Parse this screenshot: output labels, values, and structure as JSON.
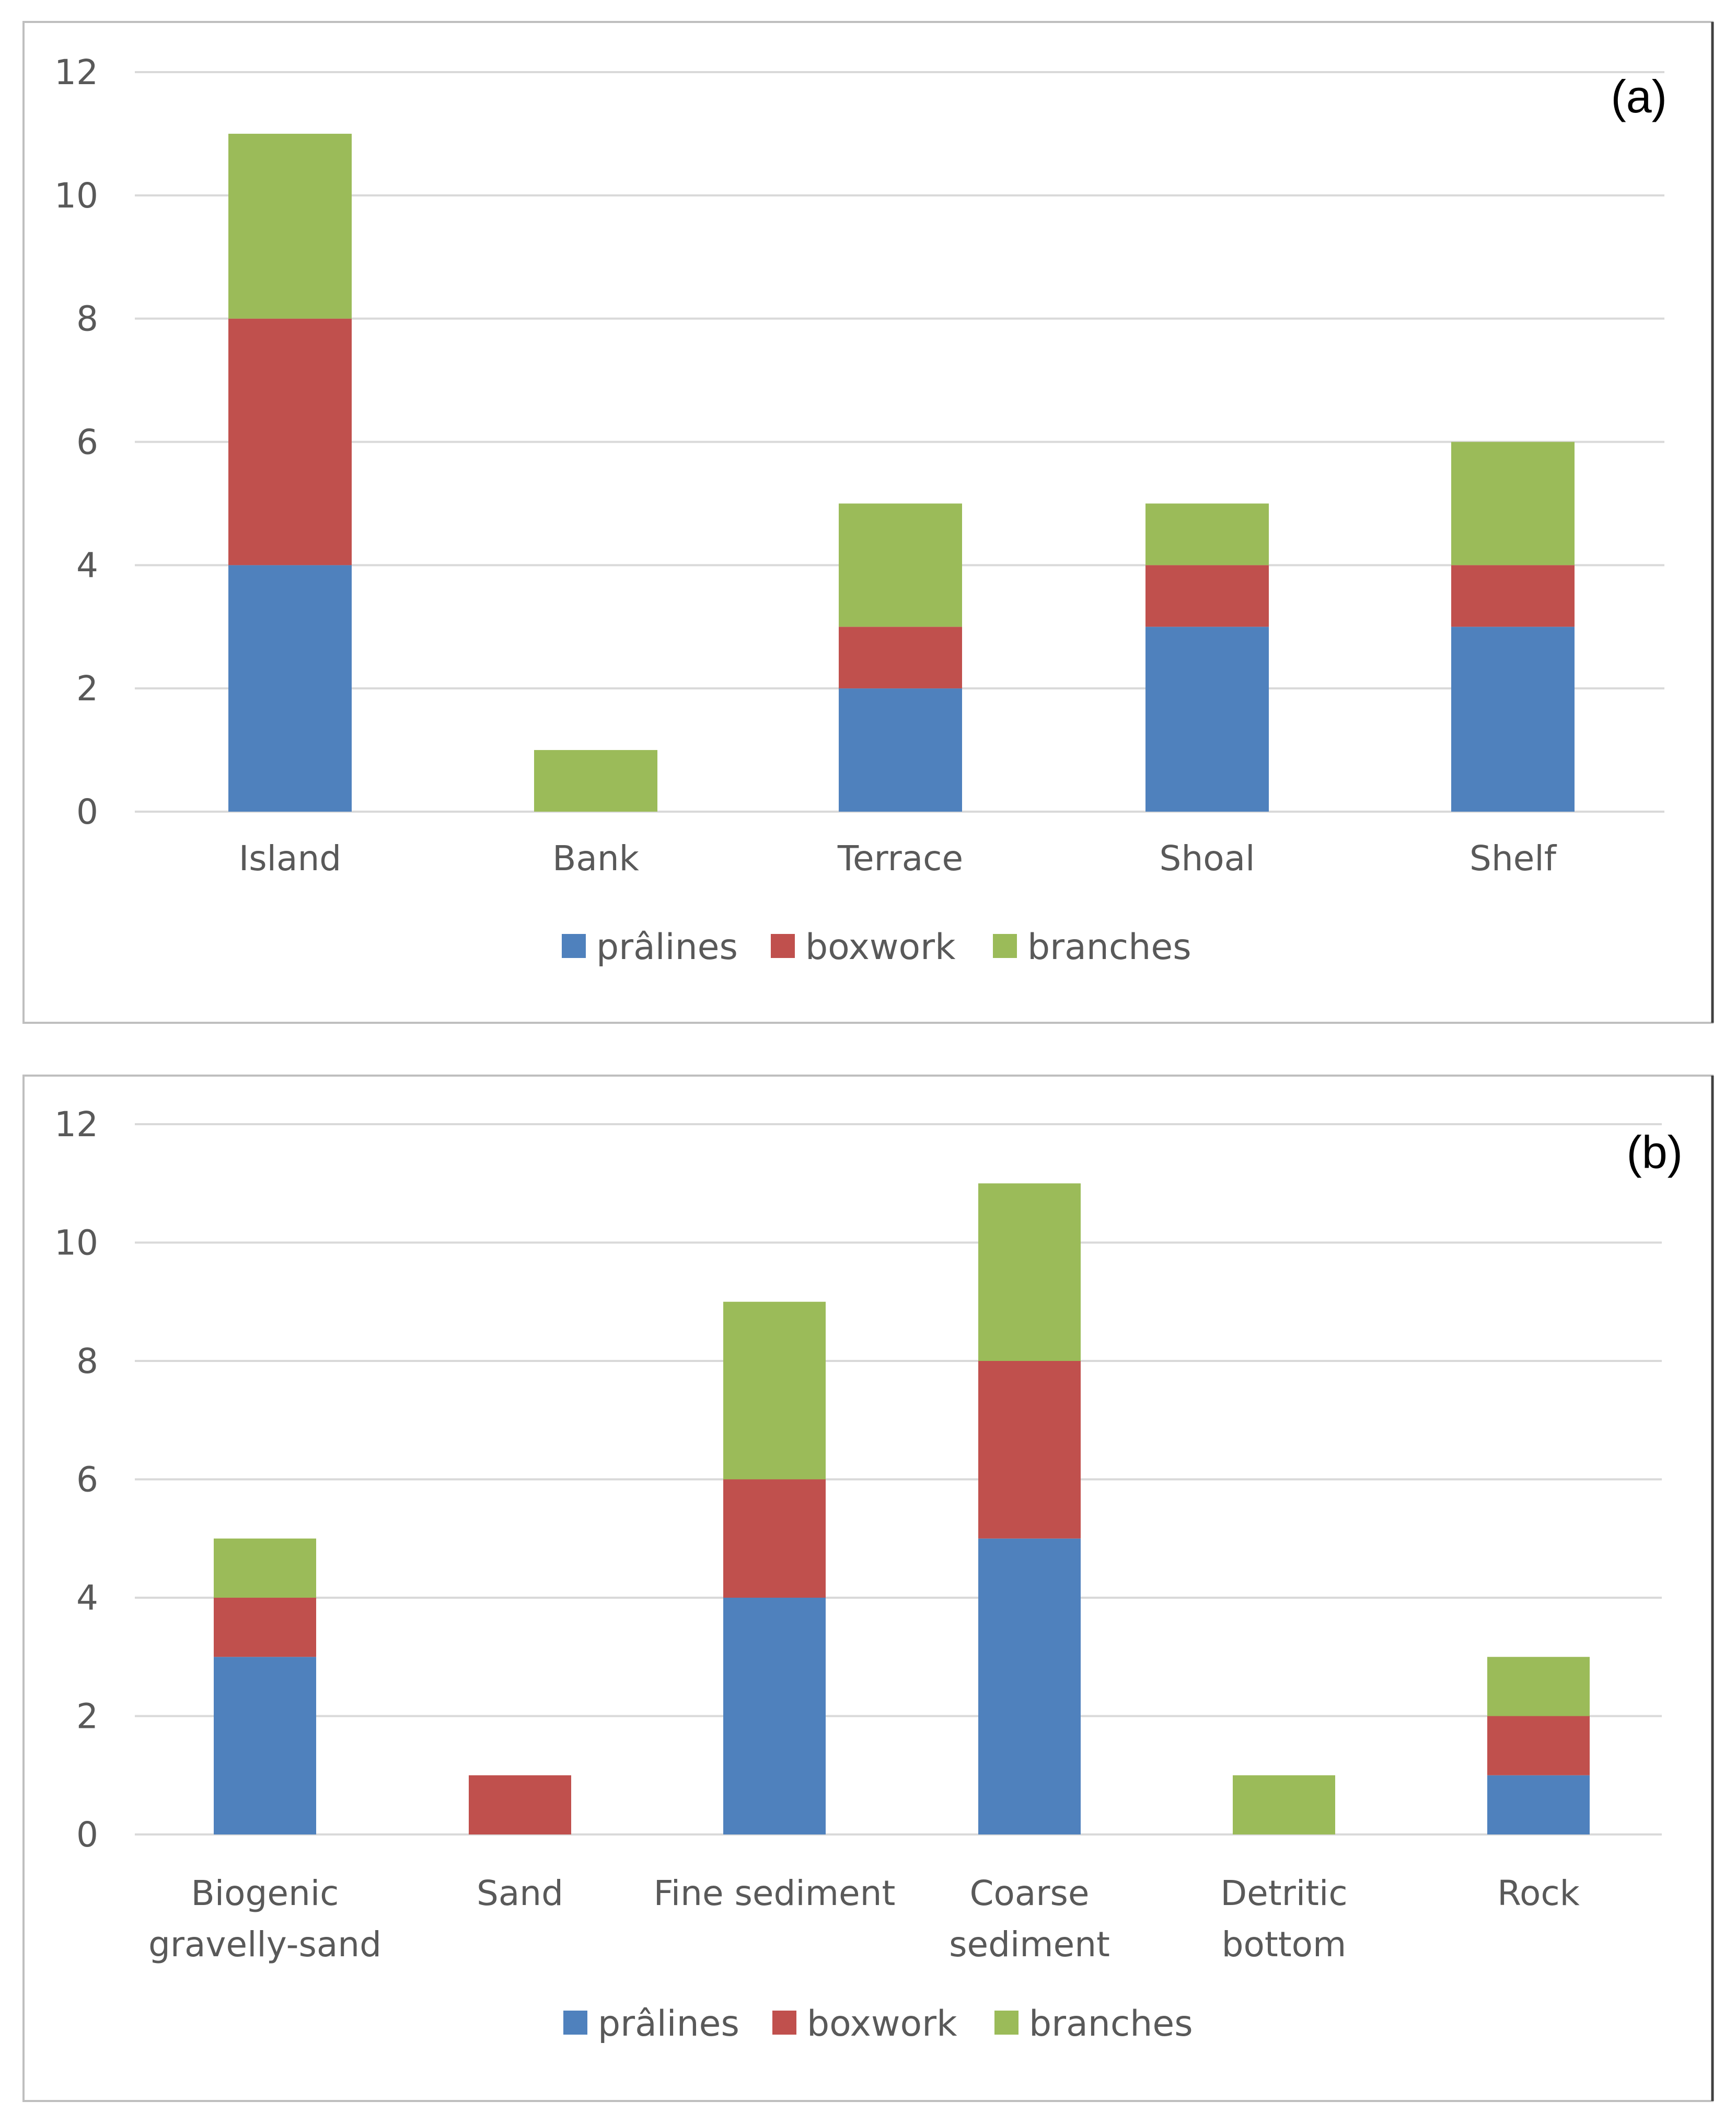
{
  "colors": {
    "pralines": "#4f81bd",
    "boxwork": "#c0504d",
    "branches": "#9bbb59",
    "grid": "#d9d9d9",
    "text": "#595959"
  },
  "chart_data": [
    {
      "type": "bar",
      "stacked": true,
      "panel_label": "(a)",
      "categories": [
        [
          "Island"
        ],
        [
          "Bank"
        ],
        [
          "Terrace"
        ],
        [
          "Shoal"
        ],
        [
          "Shelf"
        ]
      ],
      "series": [
        {
          "name": "prâlines",
          "values": [
            4,
            0,
            2,
            3,
            3
          ]
        },
        {
          "name": "boxwork",
          "values": [
            4,
            0,
            1,
            1,
            1
          ]
        },
        {
          "name": "branches",
          "values": [
            3,
            1,
            2,
            1,
            2
          ]
        }
      ],
      "ylim": [
        0,
        12
      ],
      "yticks": [
        "0",
        "2",
        "4",
        "6",
        "8",
        "10",
        "12"
      ],
      "grid": true,
      "legend_position": "bottom"
    },
    {
      "type": "bar",
      "stacked": true,
      "panel_label": "(b)",
      "categories": [
        [
          "Biogenic",
          "gravelly-sand"
        ],
        [
          "Sand"
        ],
        [
          "Fine sediment"
        ],
        [
          "Coarse",
          "sediment"
        ],
        [
          "Detritic",
          "bottom"
        ],
        [
          "Rock"
        ]
      ],
      "series": [
        {
          "name": "prâlines",
          "values": [
            3,
            0,
            4,
            5,
            0,
            1
          ]
        },
        {
          "name": "boxwork",
          "values": [
            1,
            1,
            2,
            3,
            0,
            1
          ]
        },
        {
          "name": "branches",
          "values": [
            1,
            0,
            3,
            3,
            1,
            1
          ]
        }
      ],
      "ylim": [
        0,
        12
      ],
      "yticks": [
        "0",
        "2",
        "4",
        "6",
        "8",
        "10",
        "12"
      ],
      "grid": true,
      "legend_position": "bottom"
    }
  ]
}
